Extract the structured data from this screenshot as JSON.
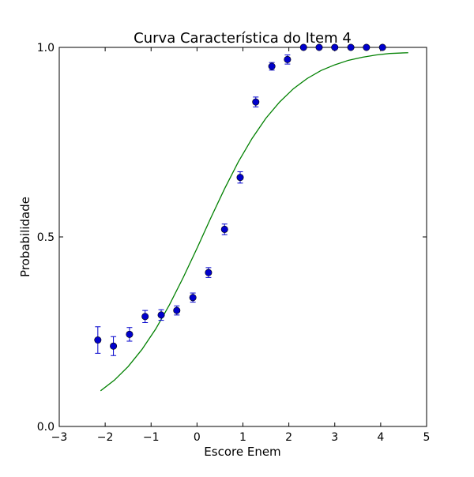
{
  "chart_data": {
    "type": "scatter",
    "title": "Curva Característica do Item 4",
    "xlabel": "Escore Enem",
    "ylabel": "Probabilidade",
    "xlim": [
      -3,
      5
    ],
    "ylim": [
      0.0,
      1.0
    ],
    "grid": false,
    "x_ticks": [
      {
        "value": -3,
        "label": "−3"
      },
      {
        "value": -2,
        "label": "−2"
      },
      {
        "value": -1,
        "label": "−1"
      },
      {
        "value": 0,
        "label": "0"
      },
      {
        "value": 1,
        "label": "1"
      },
      {
        "value": 2,
        "label": "2"
      },
      {
        "value": 3,
        "label": "3"
      },
      {
        "value": 4,
        "label": "4"
      },
      {
        "value": 5,
        "label": "5"
      }
    ],
    "y_ticks": [
      {
        "value": 0.0,
        "label": "0.0"
      },
      {
        "value": 0.5,
        "label": "0.5"
      },
      {
        "value": 1.0,
        "label": "1.0"
      }
    ],
    "series": [
      {
        "type": "scatter",
        "color": "#0000cc",
        "points": [
          {
            "x": -2.16,
            "y": 0.228,
            "err": 0.035
          },
          {
            "x": -1.82,
            "y": 0.212,
            "err": 0.025
          },
          {
            "x": -1.47,
            "y": 0.243,
            "err": 0.018
          },
          {
            "x": -1.13,
            "y": 0.29,
            "err": 0.016
          },
          {
            "x": -0.78,
            "y": 0.294,
            "err": 0.014
          },
          {
            "x": -0.44,
            "y": 0.306,
            "err": 0.012
          },
          {
            "x": -0.09,
            "y": 0.34,
            "err": 0.012
          },
          {
            "x": 0.25,
            "y": 0.406,
            "err": 0.013
          },
          {
            "x": 0.6,
            "y": 0.52,
            "err": 0.014
          },
          {
            "x": 0.94,
            "y": 0.657,
            "err": 0.015
          },
          {
            "x": 1.28,
            "y": 0.856,
            "err": 0.013
          },
          {
            "x": 1.63,
            "y": 0.95,
            "err": 0.01
          },
          {
            "x": 1.97,
            "y": 0.968,
            "err": 0.012
          },
          {
            "x": 2.32,
            "y": 1.0,
            "err": 0.0
          },
          {
            "x": 2.66,
            "y": 1.0,
            "err": 0.0
          },
          {
            "x": 3.0,
            "y": 1.0,
            "err": 0.0
          },
          {
            "x": 3.35,
            "y": 1.0,
            "err": 0.0
          },
          {
            "x": 3.69,
            "y": 1.0,
            "err": 0.0
          },
          {
            "x": 4.04,
            "y": 1.0,
            "err": 0.0
          }
        ]
      },
      {
        "type": "line",
        "color": "#008000",
        "points": [
          {
            "x": -2.1,
            "y": 0.094
          },
          {
            "x": -1.8,
            "y": 0.122
          },
          {
            "x": -1.5,
            "y": 0.158
          },
          {
            "x": -1.2,
            "y": 0.203
          },
          {
            "x": -0.9,
            "y": 0.257
          },
          {
            "x": -0.6,
            "y": 0.321
          },
          {
            "x": -0.3,
            "y": 0.393
          },
          {
            "x": 0.0,
            "y": 0.47
          },
          {
            "x": 0.3,
            "y": 0.55
          },
          {
            "x": 0.6,
            "y": 0.627
          },
          {
            "x": 0.9,
            "y": 0.698
          },
          {
            "x": 1.2,
            "y": 0.76
          },
          {
            "x": 1.5,
            "y": 0.813
          },
          {
            "x": 1.8,
            "y": 0.856
          },
          {
            "x": 2.1,
            "y": 0.891
          },
          {
            "x": 2.4,
            "y": 0.918
          },
          {
            "x": 2.7,
            "y": 0.939
          },
          {
            "x": 3.0,
            "y": 0.954
          },
          {
            "x": 3.3,
            "y": 0.966
          },
          {
            "x": 3.6,
            "y": 0.974
          },
          {
            "x": 3.9,
            "y": 0.98
          },
          {
            "x": 4.2,
            "y": 0.984
          },
          {
            "x": 4.6,
            "y": 0.986
          }
        ]
      }
    ]
  }
}
